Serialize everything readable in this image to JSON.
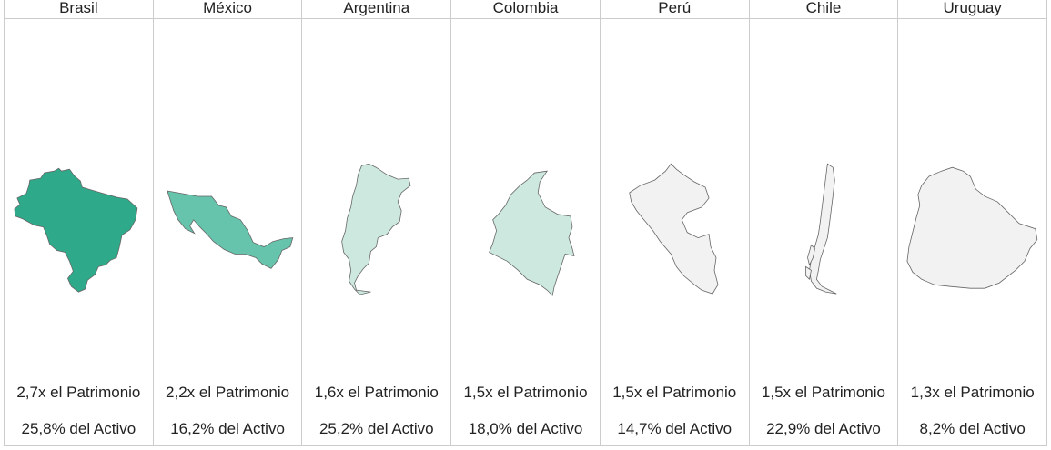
{
  "countries": [
    {
      "name": "Brasil",
      "equity_multiple": "2,7x el Patrimonio",
      "asset_share": "25,8% del Activo",
      "fill": "#2eaa8a",
      "map_icon": "brazil-map"
    },
    {
      "name": "México",
      "equity_multiple": "2,2x el Patrimonio",
      "asset_share": "16,2% del Activo",
      "fill": "#66c4ac",
      "map_icon": "mexico-map"
    },
    {
      "name": "Argentina",
      "equity_multiple": "1,6x el Patrimonio",
      "asset_share": "25,2% del Activo",
      "fill": "#cce8df",
      "map_icon": "argentina-map"
    },
    {
      "name": "Colombia",
      "equity_multiple": "1,5x el Patrimonio",
      "asset_share": "18,0% del Activo",
      "fill": "#cce8df",
      "map_icon": "colombia-map"
    },
    {
      "name": "Perú",
      "equity_multiple": "1,5x el Patrimonio",
      "asset_share": "14,7% del Activo",
      "fill": "#f2f2f2",
      "map_icon": "peru-map"
    },
    {
      "name": "Chile",
      "equity_multiple": "1,5x el Patrimonio",
      "asset_share": "22,9% del Activo",
      "fill": "#f2f2f2",
      "map_icon": "chile-map"
    },
    {
      "name": "Uruguay",
      "equity_multiple": "1,3x el Patrimonio",
      "asset_share": "8,2% del Activo",
      "fill": "#f2f2f2",
      "map_icon": "uruguay-map"
    }
  ],
  "colors": {
    "border": "#cccccc",
    "outline": "#666666",
    "text": "#222222"
  }
}
